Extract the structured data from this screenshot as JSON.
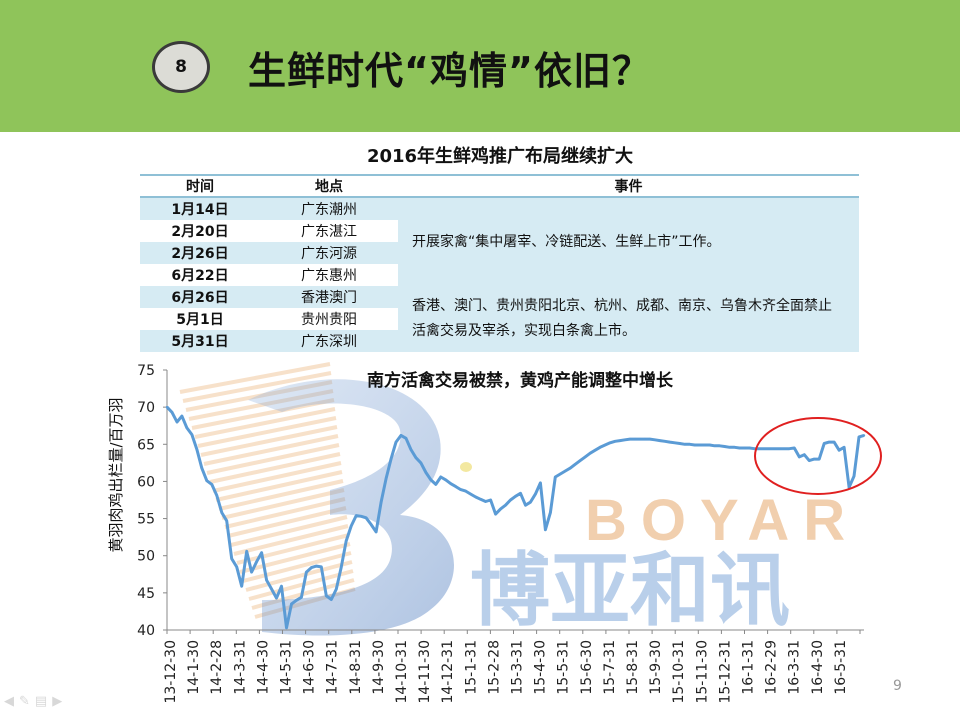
{
  "slide": {
    "badge_number": "8",
    "title": "生鲜时代“鸡情”依旧？",
    "page_number": "9"
  },
  "events_table": {
    "title": "2016年生鲜鸡推广布局继续扩大",
    "headers": [
      "时间",
      "地点",
      "事件"
    ],
    "rows": [
      {
        "date": "1月14日",
        "place": "广东潮州"
      },
      {
        "date": "2月20日",
        "place": "广东湛江"
      },
      {
        "date": "2月26日",
        "place": "广东河源"
      },
      {
        "date": "6月22日",
        "place": "广东惠州"
      },
      {
        "date": "6月26日",
        "place": "香港澳门"
      },
      {
        "date": "5月1日",
        "place": "贵州贵阳"
      },
      {
        "date": "5月31日",
        "place": "广东深圳"
      }
    ],
    "event_1": "开展家禽“集中屠宰、冷链配送、生鲜上市”工作。",
    "event_2": "香港、澳门、贵州贵阳北京、杭州、成都、南京、乌鲁木齐全面禁止活禽交易及宰杀，实现白条禽上市。"
  },
  "watermark": {
    "brand_en": "BOYAR",
    "brand_cn": "博亚和讯"
  },
  "colors": {
    "header_bg": "#8fc45a",
    "series_line": "#5b9bd5",
    "table_shade": "#d6ebf3",
    "highlight_ellipse": "#e02020"
  },
  "chart_data": {
    "type": "line",
    "title": "南方活禽交易被禁，黄鸡产能调整中增长",
    "xlabel": "",
    "ylabel": "黄羽肉鸡出栏量/百万羽",
    "ylim": [
      40,
      75
    ],
    "yticks": [
      40,
      45,
      50,
      55,
      60,
      65,
      70,
      75
    ],
    "grid": false,
    "x_tick_labels": [
      "13-12-30",
      "14-1-30",
      "14-2-28",
      "14-3-31",
      "14-4-30",
      "14-5-31",
      "14-6-30",
      "14-7-31",
      "14-8-31",
      "14-9-30",
      "14-10-31",
      "14-11-30",
      "14-12-31",
      "15-1-31",
      "15-2-28",
      "15-3-31",
      "15-4-30",
      "15-5-31",
      "15-6-30",
      "15-7-31",
      "15-8-31",
      "15-9-30",
      "15-10-31",
      "15-11-30",
      "15-12-31",
      "16-1-31",
      "16-2-29",
      "16-3-31",
      "16-4-30",
      "16-5-31"
    ],
    "series": [
      {
        "values": [
          70.0,
          69.3,
          68.0,
          68.8,
          67.2,
          66.3,
          64.3,
          61.8,
          60.1,
          59.6,
          58.1,
          55.8,
          54.7,
          49.6,
          48.5,
          45.9,
          50.6,
          47.8,
          49.2,
          50.4,
          46.7,
          45.5,
          44.3,
          45.9,
          40.3,
          43.5,
          44.0,
          44.4,
          47.8,
          48.4,
          48.6,
          48.5,
          44.6,
          44.1,
          45.5,
          48.5,
          52.0,
          54.0,
          55.4,
          55.3,
          55.1,
          54.2,
          53.2,
          57.2,
          60.4,
          63.0,
          65.3,
          66.2,
          65.8,
          64.3,
          63.2,
          62.5,
          61.2,
          60.2,
          59.6,
          60.6,
          60.2,
          59.7,
          59.3,
          58.9,
          58.7,
          58.3,
          57.9,
          57.6,
          57.3,
          57.5,
          55.6,
          56.3,
          56.8,
          57.5,
          58.0,
          58.4,
          56.8,
          57.2,
          58.3,
          59.8,
          53.5,
          55.8,
          60.6,
          61.0,
          61.4,
          61.8,
          62.3,
          62.8,
          63.3,
          63.8,
          64.2,
          64.6,
          64.9,
          65.2,
          65.4,
          65.5,
          65.6,
          65.7,
          65.7,
          65.7,
          65.7,
          65.7,
          65.6,
          65.5,
          65.4,
          65.3,
          65.2,
          65.1,
          65.0,
          65.0,
          64.9,
          64.9,
          64.9,
          64.9,
          64.8,
          64.8,
          64.7,
          64.6,
          64.6,
          64.5,
          64.5,
          64.5,
          64.4,
          64.4,
          64.4,
          64.4,
          64.4,
          64.4,
          64.4,
          64.4,
          64.5,
          63.3,
          63.6,
          62.8,
          63.0,
          63.0,
          65.1,
          65.3,
          65.3,
          64.2,
          64.6,
          59.2,
          60.7,
          66.0,
          66.2
        ]
      }
    ]
  }
}
